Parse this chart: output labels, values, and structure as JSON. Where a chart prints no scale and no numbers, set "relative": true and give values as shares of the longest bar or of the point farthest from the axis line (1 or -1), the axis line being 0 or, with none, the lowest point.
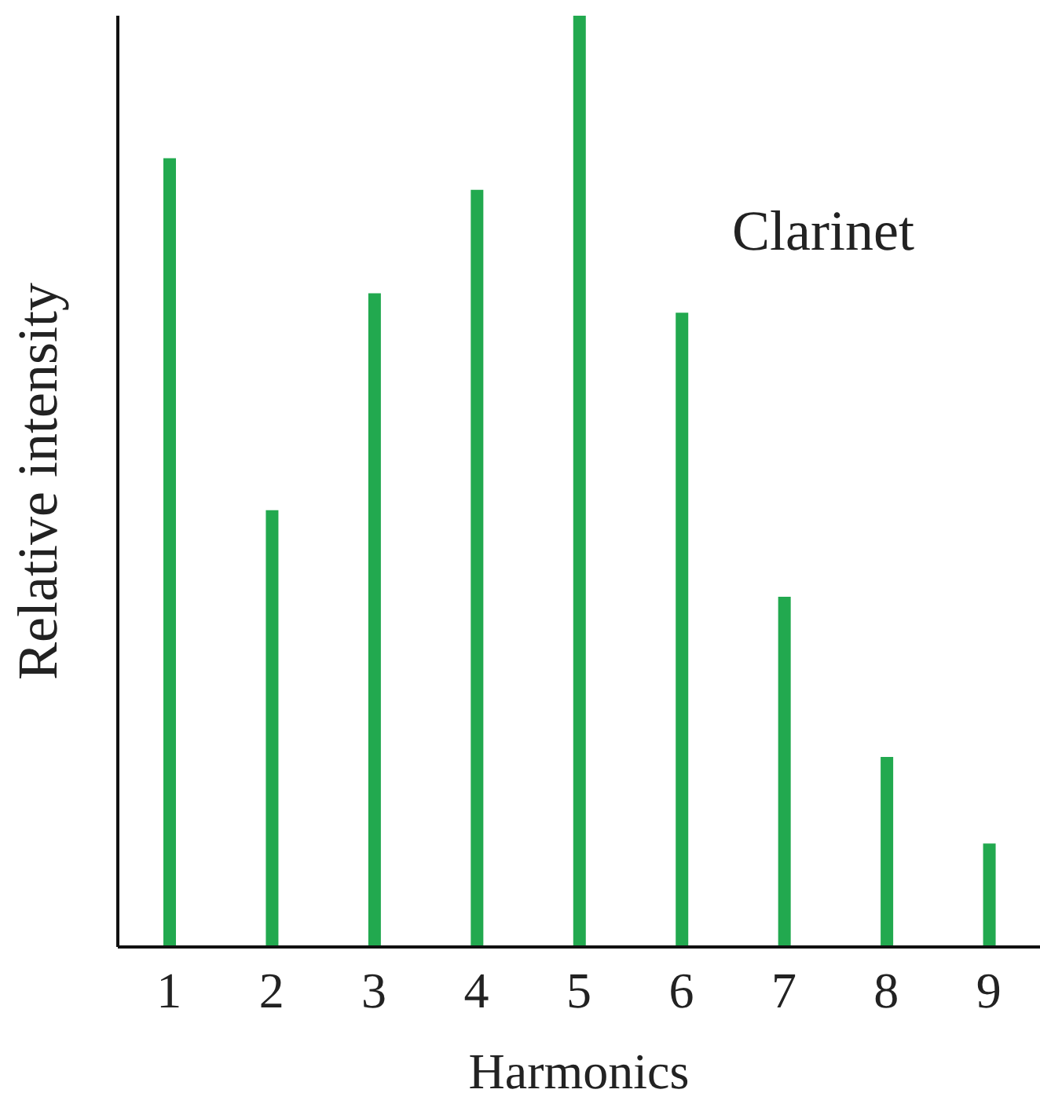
{
  "chart_data": {
    "type": "bar",
    "relative": true,
    "xlabel": "Harmonics",
    "ylabel": "Relative intensity",
    "annotations": [
      "Clarinet"
    ],
    "categories": [
      "1",
      "2",
      "3",
      "4",
      "5",
      "6",
      "7",
      "8",
      "9"
    ],
    "values": [
      0.847,
      0.469,
      0.702,
      0.813,
      1,
      0.681,
      0.376,
      0.204,
      0.111
    ],
    "color": "#22a94f"
  }
}
